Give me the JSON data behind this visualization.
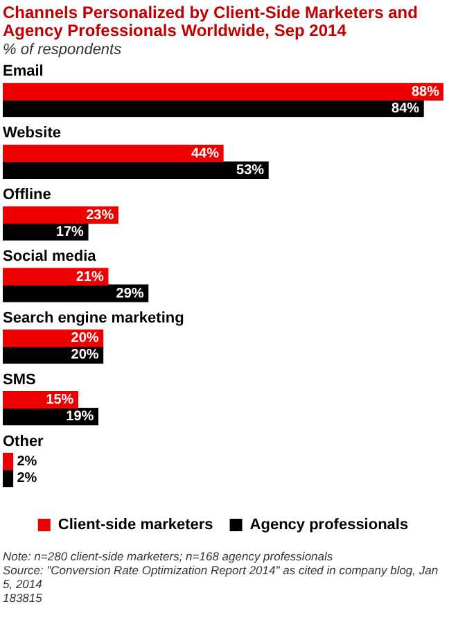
{
  "chart_data": {
    "type": "bar",
    "orientation": "horizontal",
    "title": "Channels Personalized by Client-Side Marketers and Agency Professionals Worldwide, Sep 2014",
    "subtitle": "% of respondents",
    "categories": [
      "Email",
      "Website",
      "Offline",
      "Social media",
      "Search engine marketing",
      "SMS",
      "Other"
    ],
    "series": [
      {
        "name": "Client-side marketers",
        "color": "#ee0000",
        "values": [
          88,
          44,
          23,
          21,
          20,
          15,
          2
        ],
        "value_labels": [
          "88%",
          "44%",
          "23%",
          "21%",
          "20%",
          "15%",
          "2%"
        ]
      },
      {
        "name": "Agency professionals",
        "color": "#000000",
        "values": [
          84,
          53,
          17,
          29,
          20,
          19,
          2
        ],
        "value_labels": [
          "84%",
          "53%",
          "17%",
          "29%",
          "20%",
          "19%",
          "2%"
        ]
      }
    ],
    "legend": "bottom",
    "tick_labels": false,
    "annotations": [
      "Note: n=280 client-side marketers; n=168 agency professionals",
      "Source: \"Conversion Rate Optimization Report 2014\" as cited in company blog, Jan 5, 2014",
      "183815"
    ]
  }
}
